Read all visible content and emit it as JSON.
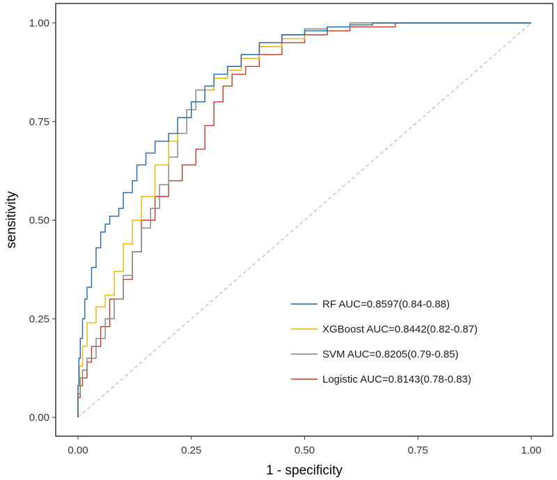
{
  "chart_data": {
    "type": "line",
    "title": "",
    "xlabel": "1 - specificity",
    "ylabel": "sensitivity",
    "xlim": [
      0,
      1
    ],
    "ylim": [
      0,
      1
    ],
    "x_ticks": [
      "0.00",
      "0.25",
      "0.50",
      "0.75",
      "1.00"
    ],
    "y_ticks": [
      "0.00",
      "0.25",
      "0.50",
      "0.75",
      "1.00"
    ],
    "grid": false,
    "legend_position": "bottom-right",
    "reference_line": {
      "style": "dashed",
      "color": "#aaaaaa",
      "from": [
        0,
        0
      ],
      "to": [
        1,
        1
      ]
    },
    "series": [
      {
        "name": "RF AUC=0.8597(0.84-0.88)",
        "color": "#2166ac",
        "points": [
          [
            0,
            0
          ],
          [
            0.002,
            0.08
          ],
          [
            0.005,
            0.15
          ],
          [
            0.01,
            0.2
          ],
          [
            0.015,
            0.25
          ],
          [
            0.02,
            0.3
          ],
          [
            0.03,
            0.33
          ],
          [
            0.04,
            0.38
          ],
          [
            0.05,
            0.43
          ],
          [
            0.06,
            0.47
          ],
          [
            0.07,
            0.49
          ],
          [
            0.09,
            0.51
          ],
          [
            0.1,
            0.53
          ],
          [
            0.12,
            0.57
          ],
          [
            0.13,
            0.6
          ],
          [
            0.15,
            0.64
          ],
          [
            0.17,
            0.67
          ],
          [
            0.2,
            0.7
          ],
          [
            0.22,
            0.72
          ],
          [
            0.25,
            0.76
          ],
          [
            0.28,
            0.8
          ],
          [
            0.3,
            0.84
          ],
          [
            0.33,
            0.87
          ],
          [
            0.36,
            0.89
          ],
          [
            0.4,
            0.92
          ],
          [
            0.45,
            0.95
          ],
          [
            0.5,
            0.97
          ],
          [
            0.55,
            0.98
          ],
          [
            0.6,
            0.99
          ],
          [
            0.65,
            0.995
          ],
          [
            0.7,
            1.0
          ],
          [
            1.0,
            1.0
          ]
        ]
      },
      {
        "name": "XGBoost AUC=0.8442(0.82-0.87)",
        "color": "#e6b800",
        "points": [
          [
            0,
            0
          ],
          [
            0.003,
            0.08
          ],
          [
            0.01,
            0.13
          ],
          [
            0.02,
            0.18
          ],
          [
            0.04,
            0.24
          ],
          [
            0.06,
            0.28
          ],
          [
            0.08,
            0.31
          ],
          [
            0.1,
            0.37
          ],
          [
            0.12,
            0.44
          ],
          [
            0.14,
            0.5
          ],
          [
            0.17,
            0.56
          ],
          [
            0.2,
            0.64
          ],
          [
            0.22,
            0.7
          ],
          [
            0.25,
            0.76
          ],
          [
            0.28,
            0.8
          ],
          [
            0.3,
            0.83
          ],
          [
            0.33,
            0.86
          ],
          [
            0.36,
            0.88
          ],
          [
            0.4,
            0.91
          ],
          [
            0.45,
            0.94
          ],
          [
            0.5,
            0.96
          ],
          [
            0.55,
            0.98
          ],
          [
            0.6,
            0.99
          ],
          [
            0.65,
            0.995
          ],
          [
            0.7,
            1.0
          ],
          [
            1.0,
            1.0
          ]
        ]
      },
      {
        "name": "SVM AUC=0.8205(0.79-0.85)",
        "color": "#808080",
        "points": [
          [
            0,
            0
          ],
          [
            0.005,
            0.06
          ],
          [
            0.01,
            0.1
          ],
          [
            0.02,
            0.12
          ],
          [
            0.04,
            0.15
          ],
          [
            0.06,
            0.2
          ],
          [
            0.08,
            0.25
          ],
          [
            0.1,
            0.3
          ],
          [
            0.12,
            0.36
          ],
          [
            0.14,
            0.42
          ],
          [
            0.16,
            0.48
          ],
          [
            0.18,
            0.53
          ],
          [
            0.2,
            0.59
          ],
          [
            0.22,
            0.66
          ],
          [
            0.24,
            0.72
          ],
          [
            0.26,
            0.78
          ],
          [
            0.3,
            0.83
          ],
          [
            0.33,
            0.86
          ],
          [
            0.36,
            0.89
          ],
          [
            0.4,
            0.92
          ],
          [
            0.45,
            0.95
          ],
          [
            0.5,
            0.97
          ],
          [
            0.55,
            0.985
          ],
          [
            0.6,
            0.99
          ],
          [
            0.7,
            1.0
          ],
          [
            1.0,
            1.0
          ]
        ]
      },
      {
        "name": "Logistic AUC=0.8143(0.78-0.83)",
        "color": "#c0392b",
        "points": [
          [
            0,
            0
          ],
          [
            0.005,
            0.05
          ],
          [
            0.01,
            0.08
          ],
          [
            0.02,
            0.1
          ],
          [
            0.03,
            0.14
          ],
          [
            0.05,
            0.18
          ],
          [
            0.07,
            0.23
          ],
          [
            0.1,
            0.3
          ],
          [
            0.12,
            0.35
          ],
          [
            0.14,
            0.42
          ],
          [
            0.17,
            0.5
          ],
          [
            0.2,
            0.56
          ],
          [
            0.23,
            0.6
          ],
          [
            0.26,
            0.64
          ],
          [
            0.28,
            0.68
          ],
          [
            0.3,
            0.74
          ],
          [
            0.32,
            0.8
          ],
          [
            0.34,
            0.84
          ],
          [
            0.37,
            0.87
          ],
          [
            0.4,
            0.89
          ],
          [
            0.45,
            0.92
          ],
          [
            0.5,
            0.95
          ],
          [
            0.55,
            0.97
          ],
          [
            0.6,
            0.98
          ],
          [
            0.7,
            0.99
          ],
          [
            0.8,
            1.0
          ],
          [
            1.0,
            1.0
          ]
        ]
      }
    ]
  }
}
